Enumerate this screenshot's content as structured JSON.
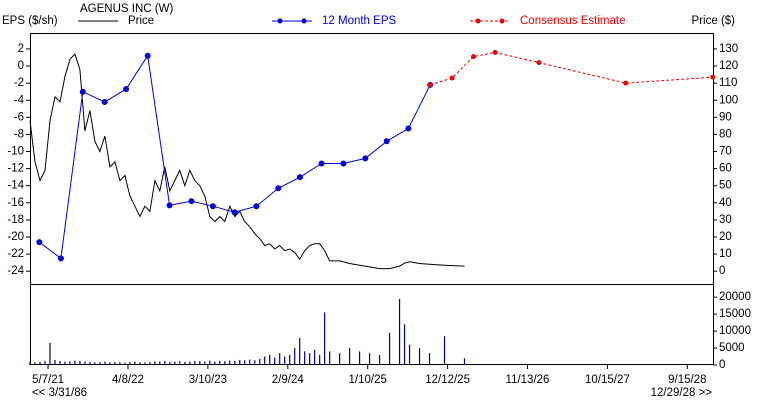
{
  "chart_data": {
    "type": "stock",
    "title": "AGENUS INC (W)",
    "y_label": "EPS ($/sh)",
    "y2_label": "Price ($)",
    "range_start_label": "<< 3/31/86",
    "range_end_label": "12/29/28 >>",
    "xlim": [
      "2/20/21",
      "1/1/29"
    ],
    "xticks": [
      "5/7/21",
      "4/8/22",
      "3/10/23",
      "2/9/24",
      "1/10/25",
      "12/12/25",
      "11/13/26",
      "10/15/27",
      "9/15/28"
    ],
    "ylim": [
      -25.5,
      3.75
    ],
    "yticks": [
      2,
      0,
      -2,
      -4,
      -6,
      -8,
      -10,
      -12,
      -14,
      -16,
      -18,
      -20,
      -22,
      -24
    ],
    "y2lim": [
      -7.5,
      138.75
    ],
    "y2ticks": [
      130,
      120,
      110,
      100,
      90,
      80,
      70,
      60,
      50,
      40,
      30,
      20,
      10,
      0
    ],
    "series": [
      {
        "name": "Price",
        "color": "#000000",
        "axis": "y2",
        "line_style": "solid",
        "markers": false,
        "x": [
          "2/20/21",
          "3/13/21",
          "4/3/21",
          "4/24/21",
          "5/15/21",
          "6/5/21",
          "6/26/21",
          "7/17/21",
          "8/7/21",
          "8/28/21",
          "9/18/21",
          "10/9/21",
          "10/30/21",
          "11/20/21",
          "12/11/21",
          "1/1/22",
          "1/22/22",
          "2/12/22",
          "3/5/22",
          "3/26/22",
          "4/16/22",
          "5/7/22",
          "5/28/22",
          "6/18/22",
          "7/9/22",
          "7/30/22",
          "8/20/22",
          "9/10/22",
          "10/1/22",
          "10/22/22",
          "11/12/22",
          "12/3/22",
          "12/24/22",
          "1/14/23",
          "2/4/23",
          "2/25/23",
          "3/18/23",
          "4/8/23",
          "4/29/23",
          "5/20/23",
          "6/10/23",
          "7/1/23",
          "7/22/23",
          "8/12/23",
          "9/2/23",
          "9/23/23",
          "10/14/23",
          "11/4/23",
          "11/25/23",
          "12/16/23",
          "1/6/24",
          "1/27/24",
          "2/17/24",
          "3/9/24",
          "3/30/24",
          "4/20/24",
          "5/11/24",
          "6/1/24",
          "6/22/24",
          "7/13/24",
          "8/3/24",
          "9/14/24",
          "10/26/24",
          "12/7/24",
          "1/18/25",
          "3/1/25",
          "4/12/25",
          "5/24/25",
          "6/14/25",
          "7/5/25",
          "8/16/25",
          "9/27/25",
          "11/29/25",
          "2/21/26"
        ],
        "values": [
          88,
          64,
          53,
          59,
          88,
          102,
          99,
          114,
          124,
          127,
          118,
          82,
          94,
          76,
          70,
          79,
          61,
          64,
          53,
          56,
          44,
          38,
          32,
          38,
          35,
          53,
          47,
          61,
          47,
          53,
          59,
          50,
          59,
          53,
          50,
          44,
          32,
          29,
          32,
          29,
          38,
          32,
          35,
          29,
          26,
          22,
          19,
          15,
          16,
          13,
          15,
          12,
          13,
          11,
          7,
          12,
          15,
          16,
          16,
          12,
          6,
          6,
          4.5,
          3.5,
          2.5,
          1.5,
          1.5,
          3,
          4.7,
          5.5,
          4.5,
          4,
          3.5,
          3
        ]
      },
      {
        "name": "12 Month EPS",
        "color": "#0000dd",
        "axis": "y",
        "line_style": "solid",
        "markers": true,
        "x": [
          "3/31/21",
          "6/30/21",
          "9/30/21",
          "12/31/21",
          "3/31/22",
          "6/30/22",
          "9/30/22",
          "12/31/22",
          "3/31/23",
          "6/30/23",
          "9/30/23",
          "12/31/23",
          "3/31/24",
          "6/30/24",
          "9/30/24",
          "12/31/24",
          "3/31/25",
          "6/30/25",
          "9/30/25"
        ],
        "values": [
          -20.6,
          -22.5,
          -3.0,
          -4.2,
          -2.7,
          1.2,
          -16.3,
          -15.8,
          -16.4,
          -17.1,
          -16.4,
          -14.3,
          -13.0,
          -11.4,
          -11.4,
          -10.8,
          -8.8,
          -7.3,
          -2.2
        ]
      },
      {
        "name": "Consensus Estimate",
        "color": "#ee0000",
        "axis": "y",
        "line_style": "dashed",
        "markers": true,
        "x": [
          "9/30/25",
          "12/31/25",
          "3/31/26",
          "6/30/26",
          "12/31/26",
          "12/31/27",
          "12/31/28"
        ],
        "values": [
          -2.2,
          -1.4,
          1.1,
          1.6,
          0.4,
          -2.0,
          -1.3
        ]
      }
    ],
    "volume": {
      "color": "#000080",
      "ylim": [
        0,
        23000
      ],
      "yticks": [
        20000,
        15000,
        10000,
        5000,
        0
      ],
      "x": [
        "2/20/21",
        "3/13/21",
        "4/3/21",
        "4/24/21",
        "5/15/21",
        "6/5/21",
        "6/26/21",
        "7/17/21",
        "8/7/21",
        "8/28/21",
        "9/18/21",
        "10/9/21",
        "10/30/21",
        "11/20/21",
        "12/11/21",
        "1/1/22",
        "1/22/22",
        "2/12/22",
        "3/5/22",
        "3/26/22",
        "4/16/22",
        "5/7/22",
        "5/28/22",
        "6/18/22",
        "7/9/22",
        "7/30/22",
        "8/20/22",
        "9/10/22",
        "10/1/22",
        "10/22/22",
        "11/12/22",
        "12/3/22",
        "12/24/22",
        "1/14/23",
        "2/4/23",
        "2/25/23",
        "3/18/23",
        "4/8/23",
        "4/29/23",
        "5/20/23",
        "6/10/23",
        "7/1/23",
        "7/22/23",
        "8/12/23",
        "9/2/23",
        "9/23/23",
        "10/14/23",
        "11/4/23",
        "11/25/23",
        "12/16/23",
        "1/6/24",
        "1/27/24",
        "2/17/24",
        "3/9/24",
        "3/30/24",
        "4/20/24",
        "5/11/24",
        "6/1/24",
        "6/22/24",
        "7/13/24",
        "8/3/24",
        "9/14/24",
        "10/26/24",
        "12/7/24",
        "1/18/25",
        "3/1/25",
        "4/12/25",
        "5/24/25",
        "6/14/25",
        "7/5/25",
        "8/16/25",
        "9/27/25",
        "11/29/25",
        "2/21/26"
      ],
      "values": [
        1000,
        800,
        900,
        1200,
        6500,
        1500,
        1200,
        1000,
        1100,
        1300,
        1200,
        1000,
        900,
        800,
        900,
        1000,
        800,
        900,
        800,
        700,
        900,
        1000,
        800,
        700,
        900,
        1100,
        1000,
        1200,
        900,
        1000,
        1100,
        900,
        1000,
        1200,
        1100,
        1000,
        1300,
        1000,
        1200,
        1100,
        1300,
        1200,
        1500,
        1400,
        1600,
        1400,
        1800,
        2500,
        3000,
        2200,
        3500,
        2500,
        3000,
        5000,
        8000,
        4000,
        3500,
        4500,
        3000,
        15500,
        4000,
        3500,
        5000,
        4000,
        3500,
        3000,
        9500,
        19500,
        12000,
        6000,
        5000,
        3500,
        8500,
        2000
      ]
    }
  }
}
